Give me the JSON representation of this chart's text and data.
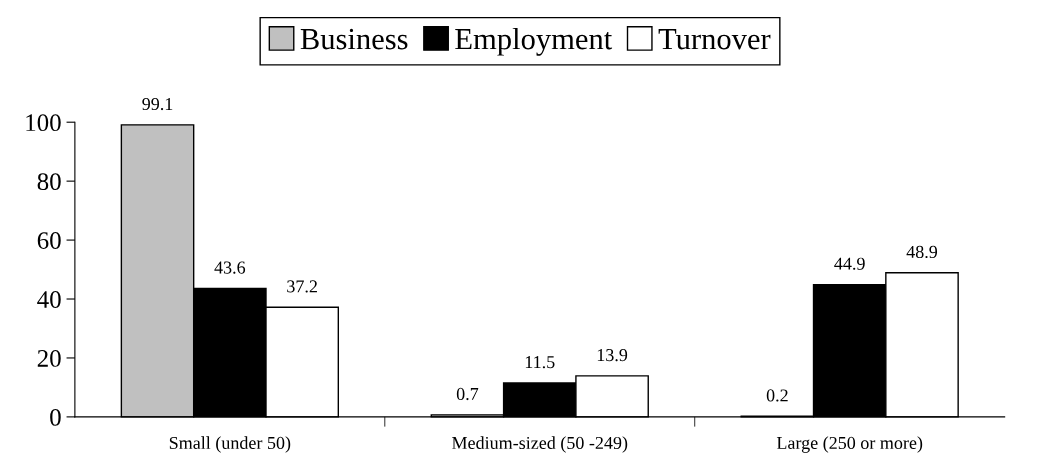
{
  "chart_data": {
    "type": "bar",
    "categories": [
      "Small (under 50)",
      "Medium-sized (50 -249)",
      "Large (250 or more)"
    ],
    "series": [
      {
        "name": "Business",
        "color": "#c0c0c0",
        "values": [
          99.1,
          0.7,
          0.2
        ]
      },
      {
        "name": "Employment",
        "color": "#000000",
        "values": [
          43.6,
          11.5,
          44.9
        ]
      },
      {
        "name": "Turnover",
        "color": "#ffffff",
        "values": [
          37.2,
          13.9,
          48.9
        ]
      }
    ],
    "ylim": [
      0,
      100
    ],
    "yticks": [
      0,
      20,
      40,
      60,
      80,
      100
    ],
    "data_labels": true,
    "grid": false,
    "legend": "top"
  }
}
